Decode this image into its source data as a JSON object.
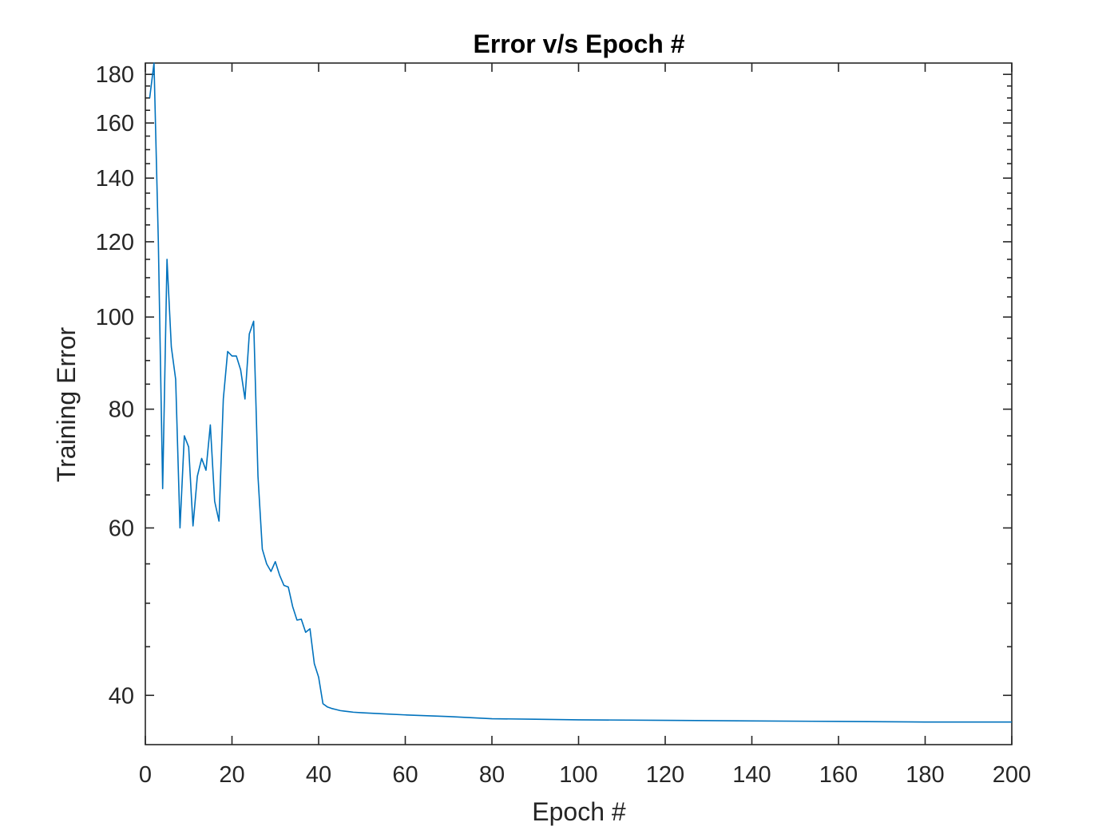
{
  "chart_data": {
    "type": "line",
    "title": "Error v/s Epoch #",
    "xlabel": "Epoch #",
    "ylabel": "Training Error",
    "xlim": [
      0,
      200
    ],
    "ylim": [
      35.5,
      185
    ],
    "y_scale": "log",
    "grid": false,
    "box": true,
    "x_ticks": [
      0,
      20,
      40,
      60,
      80,
      100,
      120,
      140,
      160,
      180,
      200
    ],
    "y_ticks": [
      40,
      60,
      80,
      100,
      120,
      140,
      160,
      180
    ],
    "y_minor_ticks": [
      45,
      50,
      55,
      65,
      70,
      75,
      85,
      90,
      95,
      105,
      110,
      115,
      125,
      130,
      135,
      145,
      150,
      155,
      165,
      170,
      175
    ],
    "series": [
      {
        "color": "#0072BD",
        "x": [
          1,
          2,
          3,
          4,
          5,
          6,
          7,
          8,
          9,
          10,
          11,
          12,
          13,
          14,
          15,
          16,
          17,
          18,
          19,
          20,
          21,
          22,
          23,
          24,
          25,
          26,
          27,
          28,
          29,
          30,
          31,
          32,
          33,
          34,
          35,
          36,
          37,
          38,
          39,
          40,
          41,
          42,
          43,
          44,
          45,
          46,
          47,
          48,
          50,
          55,
          60,
          70,
          80,
          90,
          100,
          120,
          140,
          160,
          180,
          200
        ],
        "y": [
          170,
          186,
          120,
          66,
          115,
          93,
          86,
          60,
          75,
          73,
          60.3,
          68,
          71,
          69,
          77,
          64,
          61,
          82,
          92,
          91,
          91,
          88,
          82,
          96,
          99,
          68,
          57,
          55,
          54,
          55.3,
          53.5,
          52.2,
          52,
          49.6,
          48,
          48.1,
          46.6,
          47,
          43.2,
          41.8,
          39.2,
          38.9,
          38.75,
          38.65,
          38.55,
          38.5,
          38.45,
          38.4,
          38.35,
          38.25,
          38.15,
          38.0,
          37.8,
          37.75,
          37.7,
          37.65,
          37.6,
          37.55,
          37.5,
          37.5
        ]
      }
    ]
  }
}
